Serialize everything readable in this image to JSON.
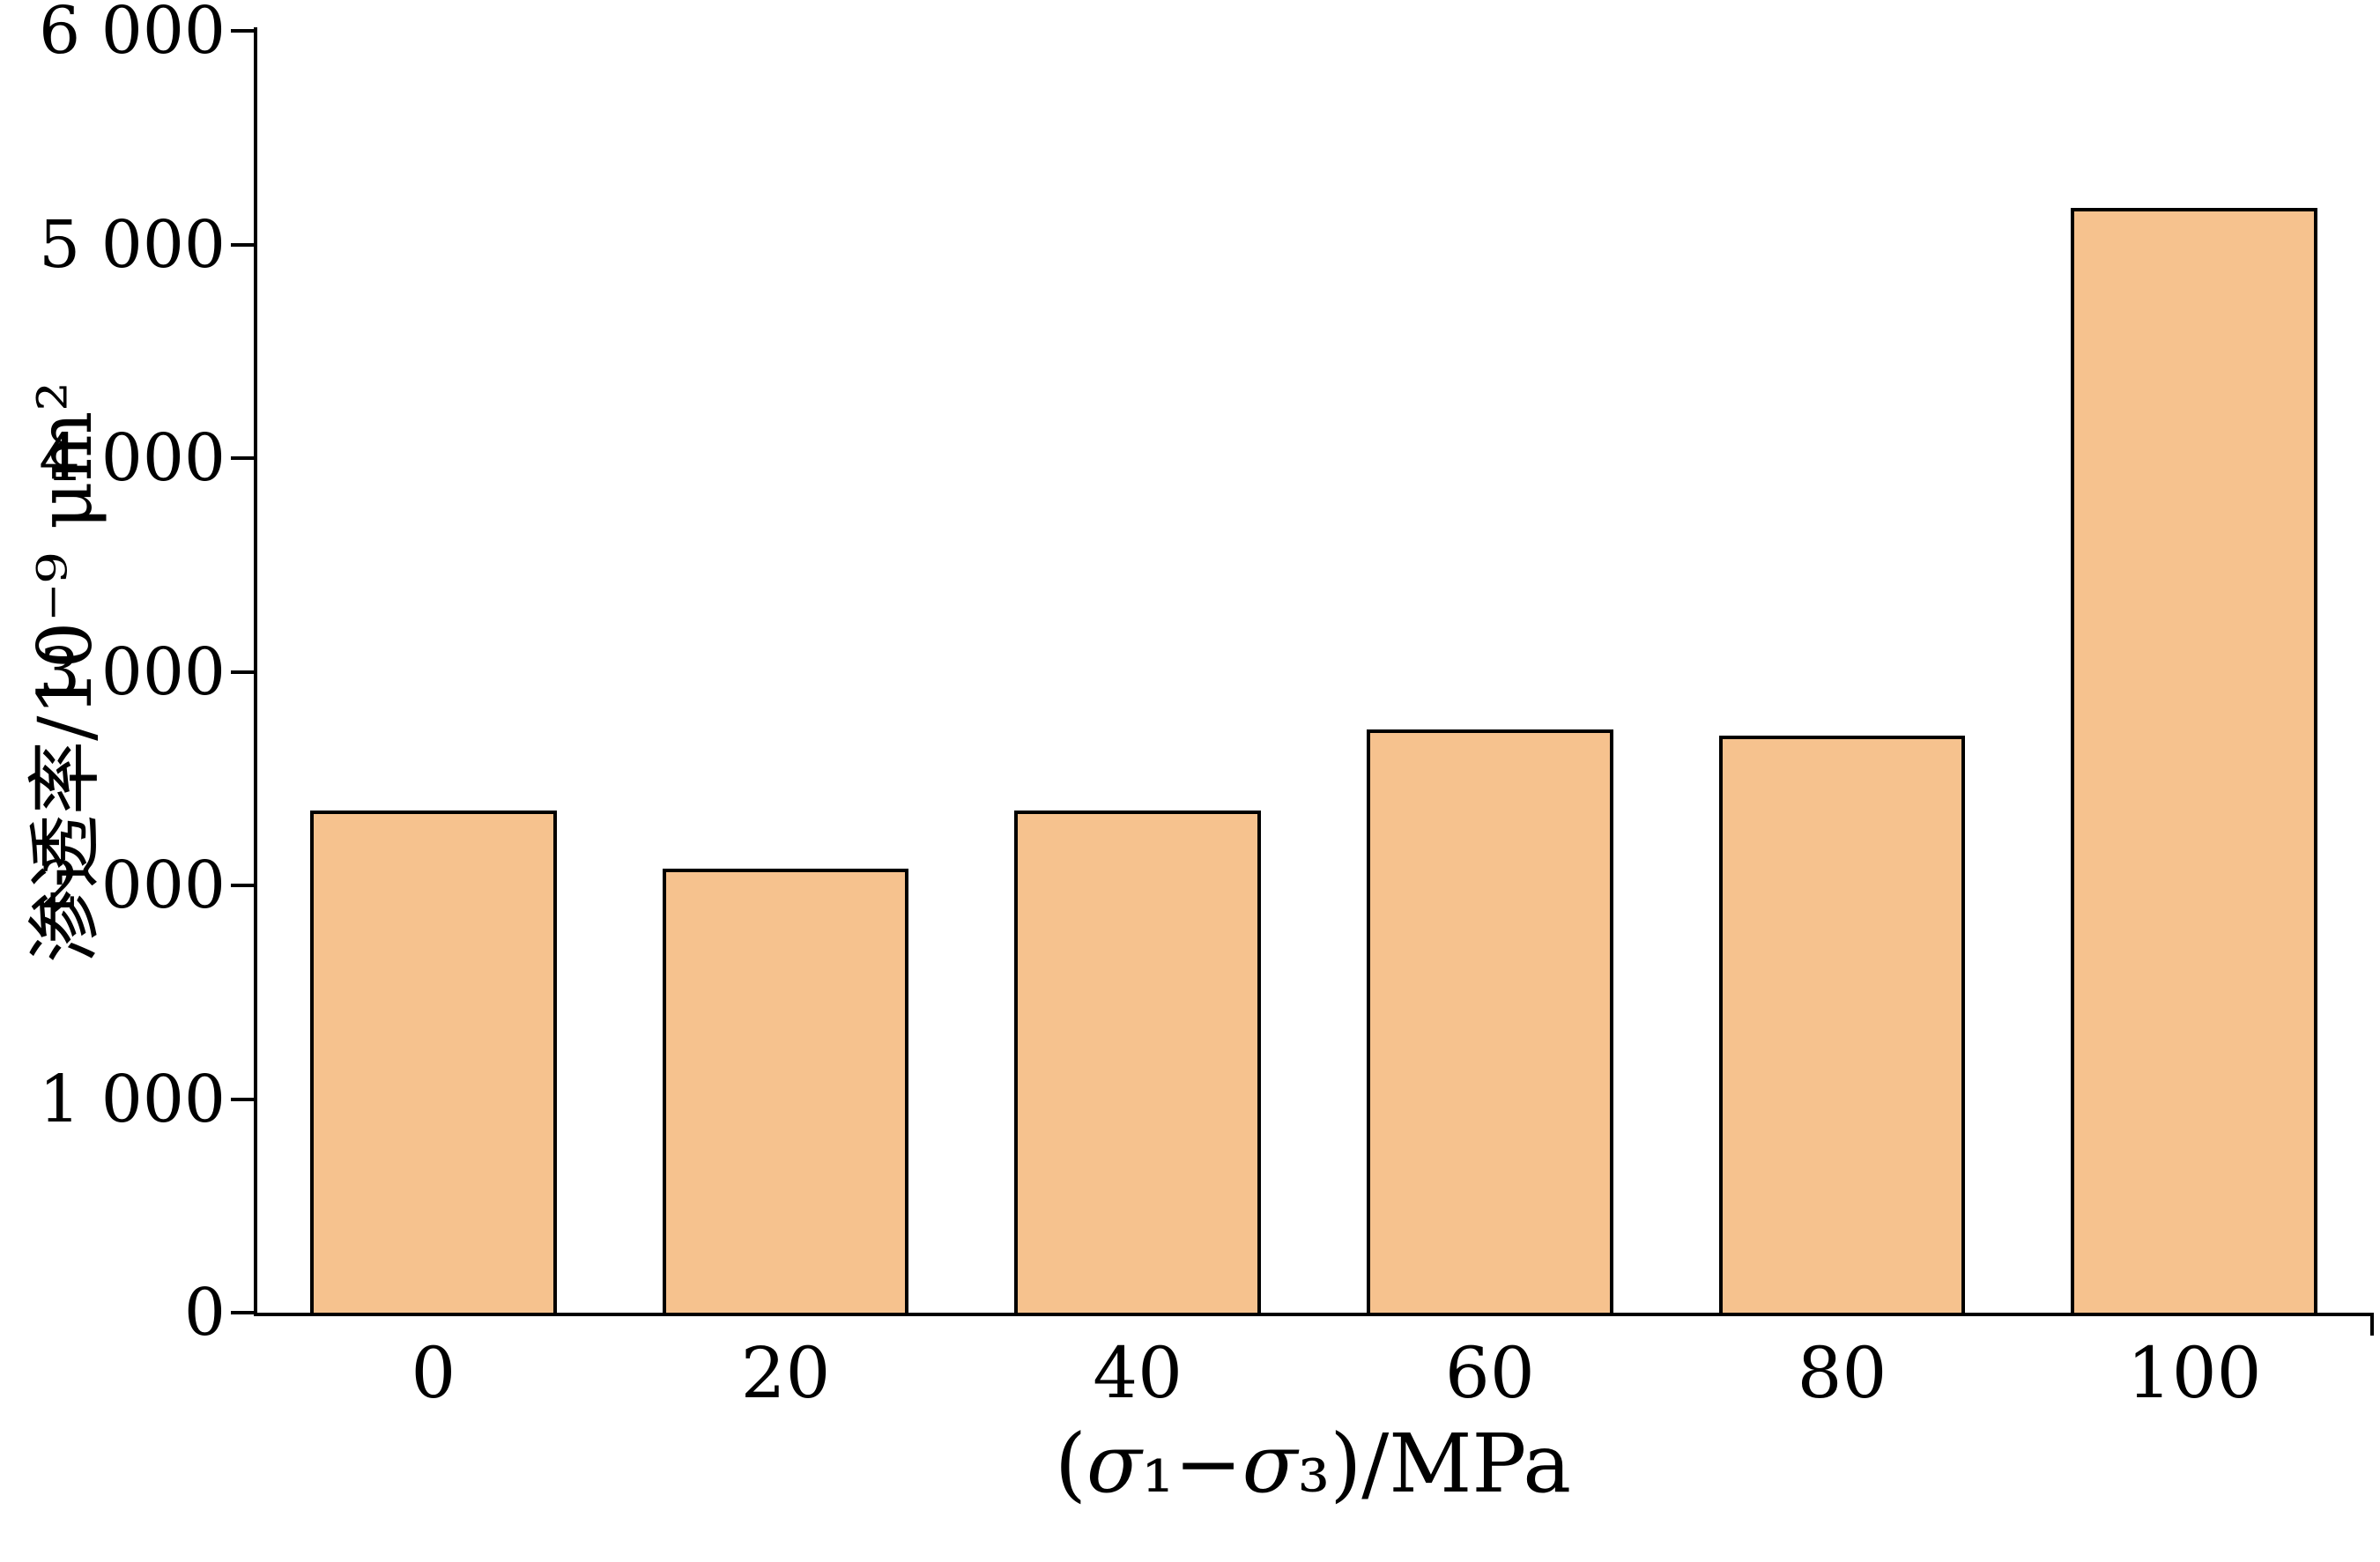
{
  "chart_data": {
    "type": "bar",
    "title": "",
    "xlabel": "(σ₁−σ₃)/MPa",
    "ylabel": "渗透率/10⁻⁹ μm²",
    "categories": [
      "0",
      "20",
      "40",
      "60",
      "80",
      "100"
    ],
    "values": [
      2350,
      2080,
      2350,
      2730,
      2700,
      5170
    ],
    "ylim": [
      0,
      6000
    ],
    "yticks": [
      0,
      1000,
      2000,
      3000,
      4000,
      5000,
      6000
    ],
    "ytick_labels": [
      "0",
      "1 000",
      "2 000",
      "3 000",
      "4 000",
      "5 000",
      "6 000"
    ],
    "bar_color": "#F6C28E",
    "bar_border_color": "#000000",
    "background_color": "#FFFFFF",
    "grid": false,
    "legend": false
  }
}
